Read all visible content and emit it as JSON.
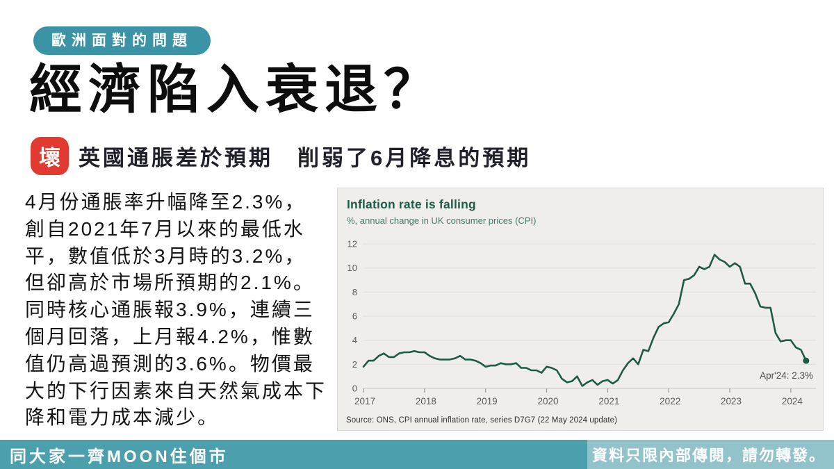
{
  "header": {
    "category_badge": "歐洲面對的問題",
    "title": "經濟陷入衰退？",
    "badge": "壞",
    "headline": "英國通脹差於預期　削弱了6月降息的預期"
  },
  "paragraph": {
    "lines": [
      "4月份通脹率升幅降至2.3%，",
      "創自2021年7月以來的最低水",
      "平，數值低於3月時的3.2%，",
      "但卻高於市場所預期的2.1%。",
      "同時核心通脹報3.9%，連續三",
      "個月回落，上月報4.2%，惟數",
      "值仍高過預測的3.6%。物價最",
      "大的下行因素來自天然氣成本下",
      "降和電力成本減少。"
    ]
  },
  "chart": {
    "title": "Inflation rate is falling",
    "subtitle": "%, annual change in UK consumer prices (CPI)",
    "source": "Source: ONS, CPI annual inflation rate, series D7G7 (22 May 2024 update)"
  },
  "chart_data": {
    "type": "line",
    "title": "Inflation rate is falling",
    "ylabel": "%, annual change in UK consumer prices (CPI)",
    "x_start": "2017-01",
    "x_end": "2024-04",
    "x_tick_labels": [
      "2017",
      "2018",
      "2019",
      "2020",
      "2021",
      "2022",
      "2023",
      "2024"
    ],
    "y_ticks": [
      0,
      2,
      4,
      6,
      8,
      10,
      12
    ],
    "ylim": [
      0,
      12
    ],
    "grid": true,
    "series": [
      {
        "name": "UK CPI annual inflation rate (%)",
        "values": [
          1.8,
          2.3,
          2.3,
          2.7,
          2.9,
          2.6,
          2.6,
          2.9,
          3.0,
          3.0,
          3.1,
          3.0,
          3.0,
          2.7,
          2.5,
          2.4,
          2.4,
          2.4,
          2.5,
          2.7,
          2.4,
          2.4,
          2.3,
          2.1,
          1.8,
          1.9,
          1.9,
          2.1,
          2.0,
          2.0,
          2.1,
          1.7,
          1.7,
          1.5,
          1.5,
          1.3,
          1.8,
          1.7,
          1.5,
          0.8,
          0.5,
          0.6,
          1.0,
          0.2,
          0.5,
          0.7,
          0.3,
          0.6,
          0.7,
          0.4,
          0.7,
          1.5,
          2.1,
          2.5,
          2.0,
          3.2,
          3.1,
          4.2,
          5.1,
          5.4,
          5.5,
          6.2,
          7.0,
          9.0,
          9.1,
          9.4,
          10.1,
          9.9,
          10.1,
          11.1,
          10.7,
          10.5,
          10.1,
          10.4,
          10.1,
          8.7,
          8.7,
          7.9,
          6.8,
          6.7,
          6.7,
          4.6,
          3.9,
          4.0,
          4.0,
          3.4,
          3.2,
          2.3
        ]
      }
    ],
    "annotation": {
      "label": "Apr'24: 2.3%",
      "x": "2024-04",
      "y": 2.3
    }
  },
  "footer": {
    "left": "同大家一齊MOON住個市",
    "right": "資料只限內部傳閱，請勿轉發。"
  },
  "colors": {
    "badge_teal": "#3a94a6",
    "bad_red": "#e03a31",
    "chart_line_green": "#1d5b47",
    "chart_title_green": "#1d5c4a",
    "chart_bg": "#efeeeb",
    "gridline": "#e2e2dd",
    "axis_text": "#5a5a5a",
    "footer_teal_dark": "#4c9fad",
    "footer_teal_light": "#92c3cb"
  }
}
